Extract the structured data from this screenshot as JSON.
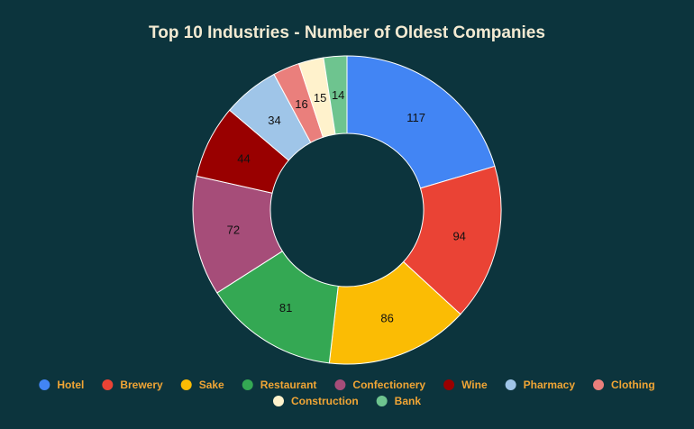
{
  "chart_data": {
    "type": "pie",
    "variant": "donut",
    "title": "Top 10 Industries - Number of Oldest Companies",
    "categories": [
      "Hotel",
      "Brewery",
      "Sake",
      "Restaurant",
      "Confectionery",
      "Wine",
      "Pharmacy",
      "Clothing",
      "Construction",
      "Bank"
    ],
    "values": [
      117,
      94,
      86,
      81,
      72,
      44,
      34,
      16,
      15,
      14
    ],
    "colors": [
      "#4285f4",
      "#ea4335",
      "#fbbc04",
      "#34a853",
      "#a64d79",
      "#990000",
      "#9fc5e8",
      "#ea7f7c",
      "#fff2cc",
      "#6ec48f"
    ],
    "legend_position": "bottom",
    "data_labels": true
  },
  "theme": {
    "background": "#0c343d",
    "title_color": "#f3ead2",
    "legend_text_color": "#f0a535",
    "label_color": "#111111"
  }
}
